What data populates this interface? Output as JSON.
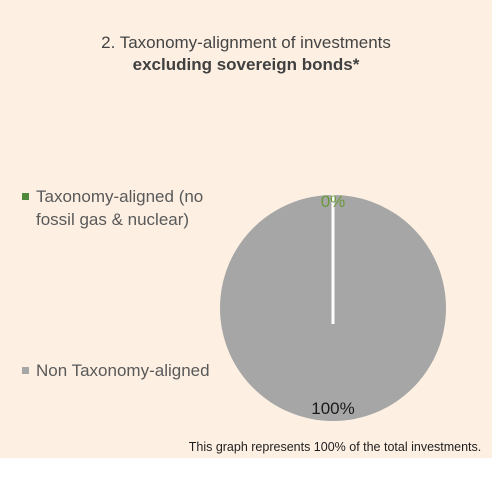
{
  "title": {
    "line1": "2. Taxonomy-alignment of investments",
    "line2": "excluding sovereign bonds*"
  },
  "colors": {
    "background": "#fdf0e3",
    "aligned": "#4e8a3a",
    "non_aligned": "#a6a6a6",
    "aligned_label": "#6a9a3a"
  },
  "chart_data": {
    "type": "pie",
    "title": "2. Taxonomy-alignment of investments excluding sovereign bonds*",
    "slices": [
      {
        "label": "Taxonomy-aligned (no fossil gas & nuclear)",
        "value": 0,
        "data_label": "0%"
      },
      {
        "label": "Non Taxonomy-aligned",
        "value": 100,
        "data_label": "100%"
      }
    ],
    "legend": [
      "Taxonomy-aligned (no fossil gas & nuclear)",
      "Non Taxonomy-aligned"
    ],
    "legend_placement": "left"
  },
  "caption": "This graph represents 100% of the total investments."
}
